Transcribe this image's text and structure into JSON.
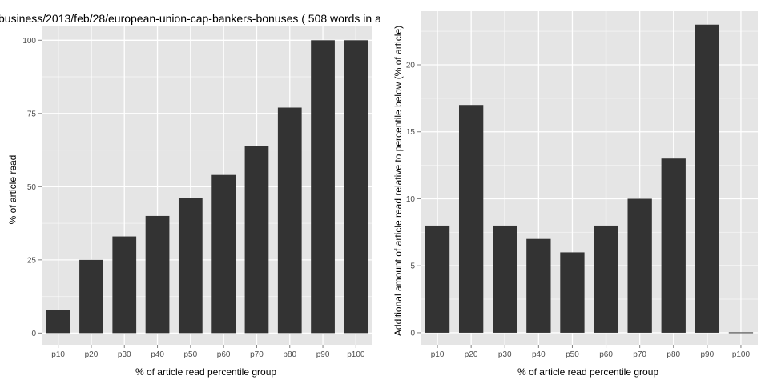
{
  "colors": {
    "panel": "#e5e5e5",
    "grid_major": "#ffffff",
    "grid_minor": "#f2f2f2",
    "bar": "#333333",
    "tick_text": "#4d4d4d",
    "tick_mark": "#7f7f7f"
  },
  "chart_data": [
    {
      "type": "bar",
      "title": "business/2013/feb/28/european-union-cap-bankers-bonuses ( 508 words in a",
      "xlabel": "% of article read percentile group",
      "ylabel": "% of article read",
      "categories": [
        "p10",
        "p20",
        "p30",
        "p40",
        "p50",
        "p60",
        "p70",
        "p80",
        "p90",
        "p100"
      ],
      "values": [
        8,
        25,
        33,
        40,
        46,
        54,
        64,
        77,
        100,
        100
      ],
      "ylim": [
        -4,
        105
      ],
      "yticks": [
        0,
        25,
        50,
        75,
        100
      ],
      "ytick_labels": [
        "0",
        "25",
        "50",
        "75",
        "100"
      ],
      "grid": true
    },
    {
      "type": "bar",
      "title": "",
      "xlabel": "% of article read percentile group",
      "ylabel": "Additional amount of article read relative to percentile below (% of article)",
      "categories": [
        "p10",
        "p20",
        "p30",
        "p40",
        "p50",
        "p60",
        "p70",
        "p80",
        "p90",
        "p100"
      ],
      "values": [
        8,
        17,
        8,
        7,
        6,
        8,
        10,
        13,
        23,
        0
      ],
      "ylim": [
        -0.9,
        24
      ],
      "yticks": [
        0,
        5,
        10,
        15,
        20
      ],
      "ytick_labels": [
        "0",
        "5",
        "10",
        "15",
        "20"
      ],
      "grid": true
    }
  ]
}
